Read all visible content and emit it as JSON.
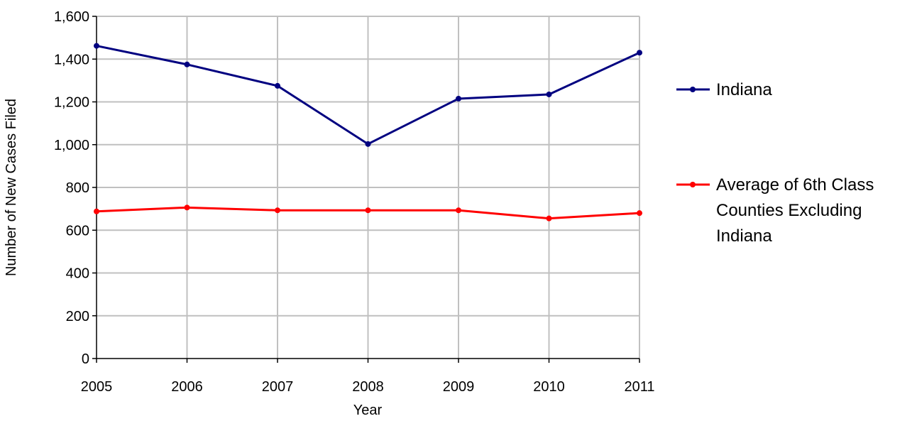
{
  "chart_data": {
    "type": "line",
    "title": "",
    "xlabel": "Year",
    "ylabel": "Number of New Cases Filed",
    "x": [
      "2005",
      "2006",
      "2007",
      "2008",
      "2009",
      "2010",
      "2011"
    ],
    "ylim": [
      0,
      1600
    ],
    "y_ticks": [
      0,
      200,
      400,
      600,
      800,
      1000,
      1200,
      1400,
      1600
    ],
    "y_tick_labels": [
      "0",
      "200",
      "400",
      "600",
      "800",
      "1,000",
      "1,200",
      "1,400",
      "1,600"
    ],
    "grid": true,
    "legend_position": "right",
    "series": [
      {
        "name": "Indiana",
        "name_lines": [
          "Indiana"
        ],
        "color": "#000080",
        "values": [
          1462,
          1375,
          1275,
          1003,
          1215,
          1235,
          1430
        ]
      },
      {
        "name": "Average of 6th Class Counties Excluding Indiana",
        "name_lines": [
          "Average of 6th Class",
          "Counties Excluding",
          "Indiana"
        ],
        "color": "#ff0000",
        "values": [
          688,
          706,
          693,
          693,
          693,
          655,
          680
        ]
      }
    ]
  }
}
